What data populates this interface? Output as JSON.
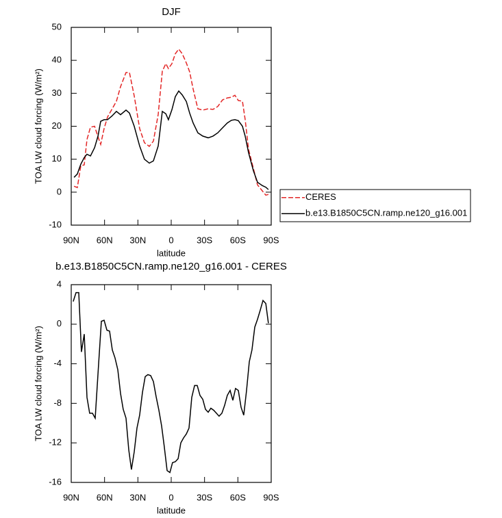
{
  "chart_data": [
    {
      "type": "line",
      "title": "DJF",
      "xlabel": "latitude",
      "ylabel": "TOA LW cloud forcing (W/m²)",
      "x": [
        87.5,
        84.5,
        81.4,
        78.3,
        75.8,
        72.7,
        69.0,
        65.9,
        63.5,
        60.4,
        57.3,
        53.6,
        49.3,
        45.6,
        40.7,
        37.6,
        33.3,
        28.4,
        24.1,
        19.7,
        16.0,
        11.7,
        8.0,
        4.9,
        2.5,
        -0.6,
        -3.7,
        -6.8,
        -9.9,
        -13.6,
        -16.6,
        -19.7,
        -24.0,
        -28.4,
        -33.3,
        -37.6,
        -41.9,
        -46.2,
        -50.5,
        -54.2,
        -57.3,
        -60.4,
        -64.1,
        -66.6,
        -69.6,
        -74.0,
        -77.7,
        -82.0,
        -85.1,
        -87.5
      ],
      "series": [
        {
          "name": "CERES",
          "color": "#e32626",
          "style": "dashed",
          "values": [
            1.8,
            1.4,
            8,
            8.3,
            16,
            19.7,
            20,
            16.8,
            14.5,
            19.3,
            22.8,
            25,
            27.6,
            32,
            36.3,
            36.3,
            29.2,
            19.3,
            15,
            13.9,
            15.5,
            23.6,
            36.7,
            39,
            37.5,
            39,
            42,
            43.4,
            42,
            39.2,
            36.5,
            31.3,
            25.3,
            24.9,
            25.3,
            25.1,
            26,
            28,
            28.6,
            28.8,
            29.4,
            27.8,
            27.6,
            22,
            13,
            7.2,
            2.2,
            0.4,
            -0.9,
            -0.7
          ]
        },
        {
          "name": "b.e13.B1850C5CN.ramp.ne120_g16.001",
          "color": "#000000",
          "style": "solid",
          "values": [
            4.5,
            5.5,
            8.5,
            10.5,
            11.5,
            11,
            13.5,
            17,
            21.5,
            22,
            22,
            23,
            24.5,
            23.5,
            24.9,
            24,
            20,
            14,
            10,
            8.8,
            9.5,
            14,
            24.5,
            23.8,
            22,
            25,
            29,
            30.7,
            29.5,
            27.5,
            24,
            21,
            18,
            17,
            16.5,
            17,
            18,
            19.5,
            21,
            21.8,
            22,
            21.7,
            20,
            17,
            12,
            6.5,
            3,
            2,
            1.5,
            0.8
          ]
        }
      ],
      "xlim": [
        90,
        -90
      ],
      "xticks": [
        {
          "value": 90,
          "label": "90N"
        },
        {
          "value": 60,
          "label": "60N"
        },
        {
          "value": 30,
          "label": "30N"
        },
        0,
        {
          "value": -30,
          "label": "30S"
        },
        {
          "value": -60,
          "label": "60S"
        },
        {
          "value": -90,
          "label": "90S"
        }
      ],
      "ylim": [
        -10,
        50
      ],
      "yticks": [
        -10,
        0,
        10,
        20,
        30,
        40,
        50
      ],
      "legend": "right"
    },
    {
      "type": "line",
      "title": "b.e13.B1850C5CN.ramp.ne120_g16.001 - CERES",
      "xlabel": "latitude",
      "ylabel": "TOA LW cloud forcing (W/m²)",
      "x": [
        88.2,
        85.7,
        83.2,
        80.8,
        78.3,
        75.8,
        73.4,
        70.9,
        68.4,
        65.3,
        62.9,
        60.4,
        57.9,
        55.5,
        53.0,
        50.6,
        48.1,
        45.6,
        43.2,
        40.7,
        38.2,
        35.8,
        33.3,
        30.8,
        28.4,
        25.9,
        23.4,
        21.0,
        18.5,
        16.0,
        13.6,
        11.1,
        8.6,
        6.2,
        3.7,
        1.2,
        -1.2,
        -3.7,
        -6.2,
        -8.6,
        -11.1,
        -13.6,
        -16.0,
        -18.5,
        -21.0,
        -23.4,
        -25.9,
        -28.4,
        -30.8,
        -33.3,
        -35.7,
        -38.2,
        -40.7,
        -43.1,
        -45.6,
        -48.1,
        -50.5,
        -53.0,
        -55.5,
        -57.9,
        -60.4,
        -62.9,
        -65.3,
        -67.8,
        -70.3,
        -72.7,
        -75.2,
        -77.7,
        -80.1,
        -82.6,
        -85.1,
        -87.5
      ],
      "values": [
        2.3,
        3.2,
        3.2,
        -2.8,
        -1,
        -7.4,
        -9,
        -9,
        -9.5,
        -3.9,
        0.3,
        0.4,
        -0.6,
        -0.7,
        -2.6,
        -3.4,
        -4.6,
        -7,
        -8.6,
        -9.5,
        -12.7,
        -14.7,
        -12.9,
        -10.5,
        -9.2,
        -6.9,
        -5.3,
        -5.1,
        -5.2,
        -5.8,
        -7.3,
        -8.7,
        -10.3,
        -12.4,
        -14.8,
        -15,
        -14,
        -13.9,
        -13.6,
        -12,
        -11.5,
        -11.1,
        -10.5,
        -7.4,
        -6.2,
        -6.2,
        -7.2,
        -7.6,
        -8.6,
        -8.9,
        -8.5,
        -8.7,
        -9,
        -9.3,
        -9,
        -8.2,
        -7.2,
        -6.7,
        -7.7,
        -6.5,
        -6.7,
        -8.4,
        -9.2,
        -6.7,
        -3.8,
        -2.6,
        -0.3,
        0.5,
        1.4,
        2.4,
        2.1,
        0.1
      ],
      "color": "#000000",
      "xlim": [
        90,
        -90
      ],
      "xticks": [
        {
          "value": 90,
          "label": "90N"
        },
        {
          "value": 60,
          "label": "60N"
        },
        {
          "value": 30,
          "label": "30N"
        },
        0,
        {
          "value": -30,
          "label": "30S"
        },
        {
          "value": -60,
          "label": "60S"
        },
        {
          "value": -90,
          "label": "90S"
        }
      ],
      "ylim": [
        -16,
        4
      ],
      "yticks": [
        -16,
        -12,
        -8,
        -4,
        0,
        4
      ]
    }
  ]
}
